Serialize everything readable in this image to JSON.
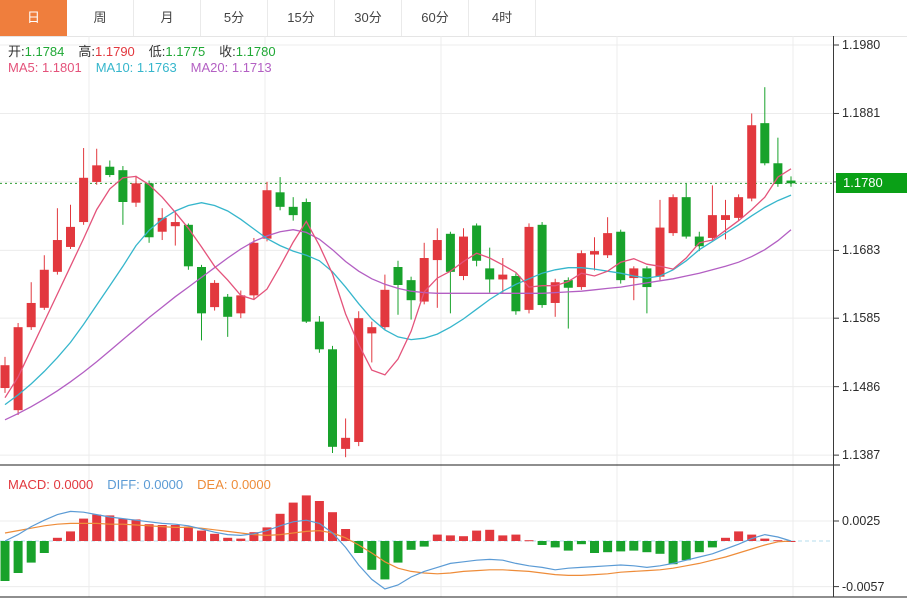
{
  "tabs": {
    "items": [
      "日",
      "周",
      "月",
      "5分",
      "15分",
      "30分",
      "60分",
      "4时"
    ],
    "selected": "日"
  },
  "overlay": {
    "ohlc": [
      {
        "name": "open",
        "label": "开:",
        "value": "1.1784",
        "color": "#1fa835"
      },
      {
        "name": "high",
        "label": "高:",
        "value": "1.1790",
        "color": "#e2383e"
      },
      {
        "name": "low",
        "label": "低:",
        "value": "1.1775",
        "color": "#1fa835"
      },
      {
        "name": "close",
        "label": "收:",
        "value": "1.1780",
        "color": "#1fa835"
      }
    ],
    "ma": [
      {
        "name": "ma5",
        "label": "MA5:",
        "value": "1.1801",
        "color": "#e4537b"
      },
      {
        "name": "ma10",
        "label": "MA10:",
        "value": "1.1763",
        "color": "#36b6cc"
      },
      {
        "name": "ma20",
        "label": "MA20:",
        "value": "1.1713",
        "color": "#b35fc3"
      }
    ],
    "macd": [
      {
        "name": "macd",
        "label": "MACD:",
        "value": "0.0000",
        "color": "#e2383e"
      },
      {
        "name": "diff",
        "label": "DIFF:",
        "value": "0.0000",
        "color": "#5b9bd5"
      },
      {
        "name": "dea",
        "label": "DEA:",
        "value": "0.0000",
        "color": "#ee8c39"
      }
    ]
  },
  "axis": {
    "price_ticks": [
      {
        "label": "1.1980",
        "price": 1.198
      },
      {
        "label": "1.1881",
        "price": 1.1881
      },
      {
        "label": "1.1683",
        "price": 1.1683
      },
      {
        "label": "1.1585",
        "price": 1.1585
      },
      {
        "label": "1.1486",
        "price": 1.1486
      },
      {
        "label": "1.1387",
        "price": 1.1387
      }
    ],
    "price_badge": {
      "label": "1.1780",
      "price": 1.178,
      "color": "#0aa017"
    },
    "macd_ticks": [
      {
        "label": "0.0025",
        "value": 0.0025
      },
      {
        "label": "-0.0057",
        "value": -0.0057
      }
    ]
  },
  "chart_data": {
    "type": "candlestick+macd",
    "title": "",
    "up_color": "#e2383e",
    "down_color": "#18a22b",
    "grid": true,
    "legend_position": "top-left-overlay",
    "price_axis": {
      "min": 1.1373,
      "max": 1.1993,
      "gridline_prices": [
        1.198,
        1.1881,
        1.1782,
        1.1683,
        1.1585,
        1.1486,
        1.1387
      ]
    },
    "macd_axis": {
      "min": -0.007,
      "max": 0.0094,
      "gridline_values": [
        0.0025,
        -0.0057
      ],
      "zero_line": 0.0
    },
    "current_price_line": 1.178,
    "candles": [
      [
        1.1484,
        1.1529,
        1.1477,
        1.1517
      ],
      [
        1.1452,
        1.1578,
        1.1445,
        1.1572
      ],
      [
        1.1572,
        1.1637,
        1.1568,
        1.1607
      ],
      [
        1.16,
        1.1676,
        1.1597,
        1.1655
      ],
      [
        1.1652,
        1.1744,
        1.1648,
        1.1698
      ],
      [
        1.1688,
        1.1749,
        1.1685,
        1.1717
      ],
      [
        1.1724,
        1.1831,
        1.172,
        1.1788
      ],
      [
        1.1782,
        1.183,
        1.1778,
        1.1806
      ],
      [
        1.1804,
        1.1813,
        1.1789,
        1.1792
      ],
      [
        1.1799,
        1.1805,
        1.172,
        1.1753
      ],
      [
        1.1752,
        1.1791,
        1.1746,
        1.178
      ],
      [
        1.178,
        1.1784,
        1.1694,
        1.1702
      ],
      [
        1.171,
        1.1744,
        1.1698,
        1.173
      ],
      [
        1.1718,
        1.174,
        1.169,
        1.1724
      ],
      [
        1.172,
        1.1722,
        1.1655,
        1.166
      ],
      [
        1.1659,
        1.1662,
        1.1553,
        1.1592
      ],
      [
        1.1601,
        1.164,
        1.1596,
        1.1636
      ],
      [
        1.1616,
        1.162,
        1.1558,
        1.1587
      ],
      [
        1.1592,
        1.1625,
        1.1585,
        1.1618
      ],
      [
        1.1618,
        1.1701,
        1.1612,
        1.1694
      ],
      [
        1.17,
        1.1782,
        1.1696,
        1.177
      ],
      [
        1.1767,
        1.1789,
        1.1741,
        1.1746
      ],
      [
        1.1746,
        1.176,
        1.1726,
        1.1734
      ],
      [
        1.1753,
        1.1758,
        1.1578,
        1.158
      ],
      [
        1.158,
        1.1588,
        1.1535,
        1.154
      ],
      [
        1.154,
        1.1545,
        1.139,
        1.1399
      ],
      [
        1.1396,
        1.144,
        1.1384,
        1.1412
      ],
      [
        1.1406,
        1.1595,
        1.14,
        1.1585
      ],
      [
        1.1563,
        1.158,
        1.1521,
        1.1572
      ],
      [
        1.1572,
        1.1648,
        1.1568,
        1.1626
      ],
      [
        1.1659,
        1.1668,
        1.159,
        1.1633
      ],
      [
        1.164,
        1.1645,
        1.1583,
        1.1611
      ],
      [
        1.1609,
        1.1694,
        1.1605,
        1.1672
      ],
      [
        1.1669,
        1.1715,
        1.16,
        1.1698
      ],
      [
        1.1707,
        1.171,
        1.1592,
        1.1652
      ],
      [
        1.1646,
        1.1715,
        1.164,
        1.1703
      ],
      [
        1.1719,
        1.1722,
        1.166,
        1.1668
      ],
      [
        1.1657,
        1.1687,
        1.1622,
        1.1641
      ],
      [
        1.1641,
        1.1672,
        1.1622,
        1.1648
      ],
      [
        1.1646,
        1.165,
        1.159,
        1.1595
      ],
      [
        1.1597,
        1.1722,
        1.1592,
        1.1717
      ],
      [
        1.172,
        1.1724,
        1.16,
        1.1604
      ],
      [
        1.1607,
        1.1642,
        1.1587,
        1.1637
      ],
      [
        1.164,
        1.1644,
        1.157,
        1.1629
      ],
      [
        1.163,
        1.1683,
        1.1626,
        1.1679
      ],
      [
        1.1677,
        1.1702,
        1.1654,
        1.1682
      ],
      [
        1.1676,
        1.1731,
        1.1672,
        1.1708
      ],
      [
        1.171,
        1.1713,
        1.1635,
        1.164
      ],
      [
        1.1643,
        1.166,
        1.1611,
        1.1657
      ],
      [
        1.1657,
        1.166,
        1.1592,
        1.163
      ],
      [
        1.1645,
        1.1756,
        1.164,
        1.1716
      ],
      [
        1.1708,
        1.1764,
        1.1704,
        1.176
      ],
      [
        1.176,
        1.178,
        1.17,
        1.1703
      ],
      [
        1.1703,
        1.171,
        1.1682,
        1.1689
      ],
      [
        1.1701,
        1.1777,
        1.1697,
        1.1734
      ],
      [
        1.1727,
        1.1756,
        1.1699,
        1.1734
      ],
      [
        1.173,
        1.1764,
        1.1726,
        1.176
      ],
      [
        1.1758,
        1.1881,
        1.1754,
        1.1864
      ],
      [
        1.1867,
        1.1919,
        1.1806,
        1.1809
      ],
      [
        1.1809,
        1.1846,
        1.1775,
        1.1779
      ],
      [
        1.1784,
        1.179,
        1.1775,
        1.178
      ]
    ],
    "ma5": [
      1.147,
      1.15,
      1.154,
      1.158,
      1.162,
      1.166,
      1.17,
      1.1742,
      1.1772,
      1.1788,
      1.179,
      1.1778,
      1.176,
      1.1738,
      1.1715,
      1.1688,
      1.166,
      1.164,
      1.1618,
      1.1612,
      1.1627,
      1.166,
      1.1695,
      1.1725,
      1.169,
      1.1649,
      1.1591,
      1.1547,
      1.151,
      1.1503,
      1.1526,
      1.1566,
      1.1623,
      1.1643,
      1.1653,
      1.1667,
      1.1679,
      1.1672,
      1.1662,
      1.1651,
      1.163,
      1.1632,
      1.1632,
      1.1638,
      1.165,
      1.1646,
      1.1653,
      1.1666,
      1.1671,
      1.1663,
      1.166,
      1.1656,
      1.1672,
      1.1694,
      1.1698,
      1.1712,
      1.1726,
      1.1742,
      1.176,
      1.1789,
      1.1801
    ],
    "ma10": [
      1.146,
      1.1474,
      1.149,
      1.1508,
      1.1528,
      1.155,
      1.1576,
      1.1604,
      1.1632,
      1.166,
      1.169,
      1.1712,
      1.1728,
      1.174,
      1.1748,
      1.1752,
      1.1748,
      1.174,
      1.1728,
      1.1714,
      1.17,
      1.169,
      1.1682,
      1.1676,
      1.1668,
      1.1652,
      1.163,
      1.1606,
      1.1584,
      1.1568,
      1.1558,
      1.1554,
      1.1556,
      1.1562,
      1.1572,
      1.1584,
      1.1598,
      1.1612,
      1.1624,
      1.1634,
      1.1642,
      1.165,
      1.1655,
      1.1658,
      1.1658,
      1.1656,
      1.1653,
      1.165,
      1.1646,
      1.1643,
      1.1646,
      1.1655,
      1.1668,
      1.1684,
      1.1696,
      1.1708,
      1.172,
      1.1733,
      1.1745,
      1.1755,
      1.1763
    ],
    "ma20": [
      1.1438,
      1.1447,
      1.1457,
      1.1468,
      1.148,
      1.1493,
      1.1507,
      1.1522,
      1.1538,
      1.1554,
      1.157,
      1.1586,
      1.1601,
      1.1616,
      1.163,
      1.1644,
      1.1658,
      1.1672,
      1.1685,
      1.1696,
      1.1704,
      1.171,
      1.1713,
      1.1709,
      1.1699,
      1.1684,
      1.1667,
      1.1653,
      1.1642,
      1.1634,
      1.1628,
      1.1624,
      1.1622,
      1.1621,
      1.1621,
      1.1621,
      1.1621,
      1.1621,
      1.1621,
      1.1621,
      1.1621,
      1.1621,
      1.1622,
      1.1623,
      1.1624,
      1.1626,
      1.1628,
      1.163,
      1.1633,
      1.1636,
      1.1639,
      1.1642,
      1.1646,
      1.165,
      1.1655,
      1.166,
      1.1666,
      1.1674,
      1.1684,
      1.1697,
      1.1713
    ],
    "macd": {
      "hist": [
        -0.005,
        -0.004,
        -0.0027,
        -0.0015,
        0.0004,
        0.0012,
        0.0028,
        0.0033,
        0.0032,
        0.0028,
        0.0027,
        0.0021,
        0.002,
        0.002,
        0.0018,
        0.0013,
        0.0009,
        0.0004,
        0.0003,
        0.0011,
        0.0017,
        0.0034,
        0.0048,
        0.0057,
        0.005,
        0.0036,
        0.0015,
        -0.0015,
        -0.0036,
        -0.0048,
        -0.0027,
        -0.0011,
        -0.0007,
        0.0008,
        0.0007,
        0.0006,
        0.0013,
        0.0014,
        0.0007,
        0.0008,
        0.0001,
        -0.0005,
        -0.0008,
        -0.0012,
        -0.0004,
        -0.0015,
        -0.0014,
        -0.0013,
        -0.0012,
        -0.0014,
        -0.0016,
        -0.0029,
        -0.0024,
        -0.0014,
        -0.0008,
        0.0004,
        0.0012,
        0.0008,
        0.0003,
        0.0001,
        0.0
      ],
      "diff": [
        0.0,
        0.0008,
        0.0018,
        0.0026,
        0.0033,
        0.0037,
        0.0036,
        0.0033,
        0.003,
        0.0028,
        0.0026,
        0.0024,
        0.0022,
        0.0021,
        0.0019,
        0.0015,
        0.0011,
        0.0008,
        0.0007,
        0.0009,
        0.0013,
        0.0019,
        0.0024,
        0.0026,
        0.0022,
        0.001,
        -0.0008,
        -0.003,
        -0.0048,
        -0.006,
        -0.0055,
        -0.0045,
        -0.0038,
        -0.0033,
        -0.0028,
        -0.0026,
        -0.0024,
        -0.0023,
        -0.0024,
        -0.0028,
        -0.0031,
        -0.0033,
        -0.0036,
        -0.0034,
        -0.0033,
        -0.0032,
        -0.0031,
        -0.003,
        -0.0031,
        -0.0033,
        -0.0031,
        -0.0028,
        -0.0024,
        -0.002,
        -0.0016,
        -0.001,
        -0.0004,
        0.0003,
        0.0008,
        0.0005,
        0.0
      ],
      "dea": [
        0.001,
        0.0013,
        0.0016,
        0.0019,
        0.0021,
        0.0022,
        0.0022,
        0.0022,
        0.0021,
        0.0021,
        0.002,
        0.0019,
        0.0018,
        0.0017,
        0.0017,
        0.0016,
        0.0014,
        0.0012,
        0.001,
        0.0008,
        0.0007,
        0.0008,
        0.001,
        0.0012,
        0.0013,
        0.001,
        0.0004,
        -0.0005,
        -0.0015,
        -0.0026,
        -0.0034,
        -0.0038,
        -0.004,
        -0.0041,
        -0.004,
        -0.0038,
        -0.0037,
        -0.0036,
        -0.0036,
        -0.0037,
        -0.0038,
        -0.004,
        -0.0042,
        -0.0043,
        -0.0043,
        -0.0042,
        -0.0041,
        -0.0039,
        -0.0038,
        -0.0037,
        -0.0036,
        -0.0034,
        -0.0031,
        -0.0028,
        -0.0024,
        -0.002,
        -0.0015,
        -0.001,
        -0.0005,
        -0.0001,
        0.0
      ],
      "diff_color": "#5b9bd5",
      "dea_color": "#ee8c39",
      "zero_dash_color": "#b5dcec"
    },
    "ma_colors": {
      "ma5": "#e4537b",
      "ma10": "#36b6cc",
      "ma20": "#b35fc3"
    },
    "colors": {
      "grid": "#ececec",
      "axis_line": "#3a3a3a",
      "panel_separator": "#1c1c1c",
      "dotted_price_line": "#2f9e33",
      "tab_selected_bg": "#ef7e3d"
    }
  }
}
